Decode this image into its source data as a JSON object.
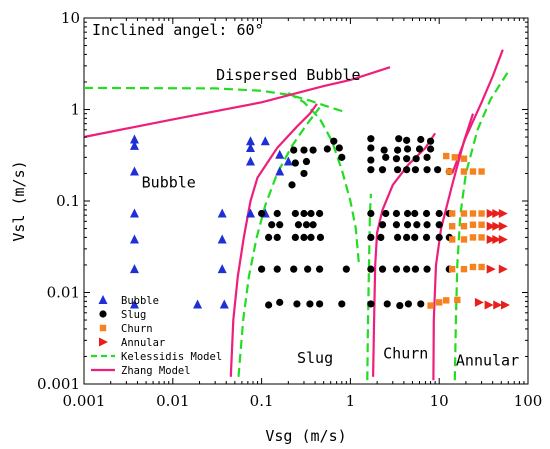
{
  "chart_data": {
    "type": "scatter",
    "title": "Inclined angel: 60°",
    "xlabel": "Vsg (m/s)",
    "ylabel": "Vsl (m/s)",
    "x_scale": "log",
    "y_scale": "log",
    "xlim": [
      0.001,
      100
    ],
    "ylim": [
      0.001,
      10
    ],
    "x_ticks": [
      0.001,
      0.01,
      0.1,
      1,
      10,
      100
    ],
    "x_tick_labels": [
      "0.001",
      "0.01",
      "0.1",
      "1",
      "10",
      "100"
    ],
    "y_ticks": [
      0.001,
      0.01,
      0.1,
      1,
      10
    ],
    "y_tick_labels": [
      "0.001",
      "0.01",
      "0.1",
      "1",
      "10"
    ],
    "grid": false,
    "legend_position": "bottom-left",
    "annotations": [
      {
        "text": "Dispersed Bubble",
        "x": 0.2,
        "y": 2.1
      },
      {
        "text": "Bubble",
        "x": 0.009,
        "y": 0.14
      },
      {
        "text": "Slug",
        "x": 0.4,
        "y": 0.0017
      },
      {
        "text": "Churn",
        "x": 4.2,
        "y": 0.0019
      },
      {
        "text": "Annular",
        "x": 35,
        "y": 0.0016
      }
    ],
    "series": [
      {
        "name": "Bubble",
        "marker": "triangle-up",
        "color": "#1f2fd6",
        "points": [
          [
            0.0037,
            0.47
          ],
          [
            0.0037,
            0.4
          ],
          [
            0.0037,
            0.21
          ],
          [
            0.0037,
            0.073
          ],
          [
            0.0037,
            0.038
          ],
          [
            0.0037,
            0.018
          ],
          [
            0.0037,
            0.0074
          ],
          [
            0.019,
            0.0074
          ],
          [
            0.036,
            0.073
          ],
          [
            0.036,
            0.038
          ],
          [
            0.036,
            0.018
          ],
          [
            0.038,
            0.0074
          ],
          [
            0.075,
            0.45
          ],
          [
            0.075,
            0.38
          ],
          [
            0.075,
            0.27
          ],
          [
            0.075,
            0.073
          ],
          [
            0.11,
            0.45
          ],
          [
            0.16,
            0.32
          ],
          [
            0.2,
            0.27
          ],
          [
            0.16,
            0.21
          ],
          [
            0.11,
            0.073
          ]
        ]
      },
      {
        "name": "Slug",
        "marker": "circle",
        "color": "#000000",
        "points": [
          [
            0.12,
            0.0073
          ],
          [
            0.16,
            0.0078
          ],
          [
            0.25,
            0.0075
          ],
          [
            0.35,
            0.0075
          ],
          [
            0.45,
            0.0075
          ],
          [
            0.8,
            0.0075
          ],
          [
            0.1,
            0.018
          ],
          [
            0.15,
            0.018
          ],
          [
            0.23,
            0.018
          ],
          [
            0.33,
            0.018
          ],
          [
            0.45,
            0.018
          ],
          [
            0.9,
            0.018
          ],
          [
            0.12,
            0.04
          ],
          [
            0.15,
            0.04
          ],
          [
            0.24,
            0.04
          ],
          [
            0.3,
            0.04
          ],
          [
            0.36,
            0.04
          ],
          [
            0.46,
            0.04
          ],
          [
            0.13,
            0.055
          ],
          [
            0.16,
            0.055
          ],
          [
            0.26,
            0.055
          ],
          [
            0.32,
            0.055
          ],
          [
            0.38,
            0.055
          ],
          [
            0.1,
            0.073
          ],
          [
            0.15,
            0.073
          ],
          [
            0.24,
            0.073
          ],
          [
            0.3,
            0.073
          ],
          [
            0.36,
            0.073
          ],
          [
            0.45,
            0.073
          ],
          [
            0.22,
            0.15
          ],
          [
            0.3,
            0.2
          ],
          [
            0.24,
            0.26
          ],
          [
            0.32,
            0.27
          ],
          [
            0.23,
            0.36
          ],
          [
            0.3,
            0.36
          ],
          [
            0.38,
            0.36
          ],
          [
            0.55,
            0.37
          ],
          [
            0.65,
            0.45
          ],
          [
            0.75,
            0.38
          ],
          [
            0.8,
            0.3
          ],
          [
            1.7,
            0.0075
          ],
          [
            2.6,
            0.0075
          ],
          [
            3.6,
            0.0072
          ],
          [
            4.5,
            0.0075
          ],
          [
            6.2,
            0.0075
          ],
          [
            1.7,
            0.018
          ],
          [
            2.3,
            0.018
          ],
          [
            3.3,
            0.018
          ],
          [
            4.3,
            0.018
          ],
          [
            5.4,
            0.018
          ],
          [
            7.3,
            0.018
          ],
          [
            13,
            0.018
          ],
          [
            1.7,
            0.04
          ],
          [
            2.2,
            0.04
          ],
          [
            3.4,
            0.04
          ],
          [
            4.3,
            0.04
          ],
          [
            5.3,
            0.04
          ],
          [
            7.2,
            0.04
          ],
          [
            10,
            0.04
          ],
          [
            13,
            0.04
          ],
          [
            2.3,
            0.055
          ],
          [
            3.3,
            0.055
          ],
          [
            4.4,
            0.055
          ],
          [
            5.6,
            0.055
          ],
          [
            7.3,
            0.055
          ],
          [
            10,
            0.055
          ],
          [
            1.7,
            0.073
          ],
          [
            2.5,
            0.073
          ],
          [
            3.3,
            0.073
          ],
          [
            4.4,
            0.073
          ],
          [
            5.3,
            0.073
          ],
          [
            7.2,
            0.073
          ],
          [
            10,
            0.073
          ],
          [
            13,
            0.073
          ],
          [
            1.7,
            0.22
          ],
          [
            2.3,
            0.22
          ],
          [
            3.4,
            0.22
          ],
          [
            4.3,
            0.22
          ],
          [
            5.4,
            0.22
          ],
          [
            7.3,
            0.22
          ],
          [
            9.6,
            0.22
          ],
          [
            13,
            0.21
          ],
          [
            1.7,
            0.28
          ],
          [
            2.5,
            0.3
          ],
          [
            3.3,
            0.29
          ],
          [
            4.3,
            0.29
          ],
          [
            5.5,
            0.29
          ],
          [
            7.3,
            0.3
          ],
          [
            1.7,
            0.38
          ],
          [
            2.4,
            0.36
          ],
          [
            3.4,
            0.36
          ],
          [
            4.4,
            0.37
          ],
          [
            6.0,
            0.37
          ],
          [
            8.0,
            0.37
          ],
          [
            1.7,
            0.48
          ],
          [
            3.5,
            0.48
          ],
          [
            4.3,
            0.46
          ],
          [
            6.2,
            0.47
          ],
          [
            8.0,
            0.45
          ]
        ]
      },
      {
        "name": "Churn",
        "marker": "square",
        "color": "#f5821f",
        "points": [
          [
            8.0,
            0.0072
          ],
          [
            10,
            0.0078
          ],
          [
            12,
            0.0082
          ],
          [
            16,
            0.0083
          ],
          [
            14,
            0.018
          ],
          [
            19,
            0.018
          ],
          [
            24,
            0.019
          ],
          [
            30,
            0.019
          ],
          [
            14,
            0.038
          ],
          [
            19,
            0.038
          ],
          [
            24,
            0.04
          ],
          [
            30,
            0.04
          ],
          [
            14,
            0.053
          ],
          [
            19,
            0.053
          ],
          [
            24,
            0.055
          ],
          [
            30,
            0.055
          ],
          [
            14,
            0.073
          ],
          [
            19,
            0.073
          ],
          [
            24,
            0.073
          ],
          [
            30,
            0.073
          ],
          [
            13,
            0.21
          ],
          [
            19,
            0.21
          ],
          [
            24,
            0.21
          ],
          [
            30,
            0.21
          ],
          [
            12,
            0.31
          ],
          [
            15,
            0.3
          ],
          [
            19,
            0.29
          ]
        ]
      },
      {
        "name": "Annular",
        "marker": "triangle-right",
        "color": "#e8201c",
        "points": [
          [
            28,
            0.0078
          ],
          [
            36,
            0.0073
          ],
          [
            45,
            0.0073
          ],
          [
            55,
            0.0073
          ],
          [
            38,
            0.018
          ],
          [
            52,
            0.018
          ],
          [
            38,
            0.038
          ],
          [
            44,
            0.038
          ],
          [
            52,
            0.038
          ],
          [
            38,
            0.053
          ],
          [
            44,
            0.053
          ],
          [
            52,
            0.053
          ],
          [
            38,
            0.073
          ],
          [
            44,
            0.073
          ],
          [
            52,
            0.073
          ]
        ]
      }
    ],
    "curves": [
      {
        "name": "Kelessidis Model",
        "style": "dashed",
        "color": "#22dd22",
        "segments": [
          [
            [
              0.001,
              1.72
            ],
            [
              0.03,
              1.7
            ],
            [
              0.1,
              1.6
            ],
            [
              0.2,
              1.45
            ],
            [
              0.35,
              1.25
            ],
            [
              0.6,
              1.05
            ],
            [
              0.9,
              0.93
            ]
          ],
          [
            [
              0.2,
              1.52
            ],
            [
              0.3,
              1.2
            ],
            [
              0.45,
              0.8
            ],
            [
              0.62,
              0.45
            ],
            [
              0.8,
              0.22
            ],
            [
              1.0,
              0.1
            ],
            [
              1.15,
              0.05
            ],
            [
              1.25,
              0.02
            ]
          ],
          [
            [
              0.055,
              0.0012
            ],
            [
              0.062,
              0.005
            ],
            [
              0.072,
              0.015
            ],
            [
              0.088,
              0.04
            ],
            [
              0.11,
              0.09
            ],
            [
              0.15,
              0.2
            ],
            [
              0.22,
              0.4
            ],
            [
              0.32,
              0.68
            ],
            [
              0.45,
              1.05
            ]
          ],
          [
            [
              1.55,
              0.0011
            ],
            [
              1.58,
              0.005
            ],
            [
              1.62,
              0.02
            ],
            [
              1.66,
              0.07
            ],
            [
              1.7,
              0.12
            ]
          ],
          [
            [
              15,
              0.0011
            ],
            [
              15.4,
              0.005
            ],
            [
              16,
              0.02
            ],
            [
              17.3,
              0.07
            ],
            [
              20,
              0.2
            ],
            [
              27,
              0.6
            ],
            [
              38,
              1.3
            ],
            [
              60,
              2.6
            ]
          ]
        ]
      },
      {
        "name": "Zhang Model",
        "style": "solid",
        "color": "#ee1f7a",
        "segments": [
          [
            [
              0.001,
              0.5
            ],
            [
              0.01,
              0.78
            ],
            [
              0.1,
              1.2
            ],
            [
              0.5,
              1.8
            ],
            [
              1.0,
              2.1
            ],
            [
              2.8,
              2.9
            ]
          ],
          [
            [
              0.045,
              0.0012
            ],
            [
              0.048,
              0.005
            ],
            [
              0.054,
              0.015
            ],
            [
              0.063,
              0.04
            ],
            [
              0.075,
              0.1
            ],
            [
              0.09,
              0.18
            ],
            [
              0.15,
              0.38
            ],
            [
              0.25,
              0.65
            ],
            [
              0.35,
              0.9
            ],
            [
              0.42,
              1.15
            ]
          ],
          [
            [
              1.8,
              0.0012
            ],
            [
              1.85,
              0.005
            ],
            [
              1.9,
              0.02
            ],
            [
              2.0,
              0.045
            ],
            [
              2.3,
              0.08
            ],
            [
              3.0,
              0.15
            ],
            [
              4.5,
              0.25
            ],
            [
              7.0,
              0.38
            ],
            [
              9.0,
              0.55
            ]
          ],
          [
            [
              8.6,
              0.0011
            ],
            [
              8.7,
              0.005
            ],
            [
              9.2,
              0.02
            ],
            [
              10.5,
              0.05
            ],
            [
              14,
              0.15
            ],
            [
              19,
              0.45
            ],
            [
              24,
              0.9
            ]
          ],
          [
            [
              14,
              0.2
            ],
            [
              20,
              0.5
            ],
            [
              30,
              1.2
            ],
            [
              40,
              2.3
            ],
            [
              52,
              4.5
            ]
          ]
        ]
      }
    ]
  }
}
